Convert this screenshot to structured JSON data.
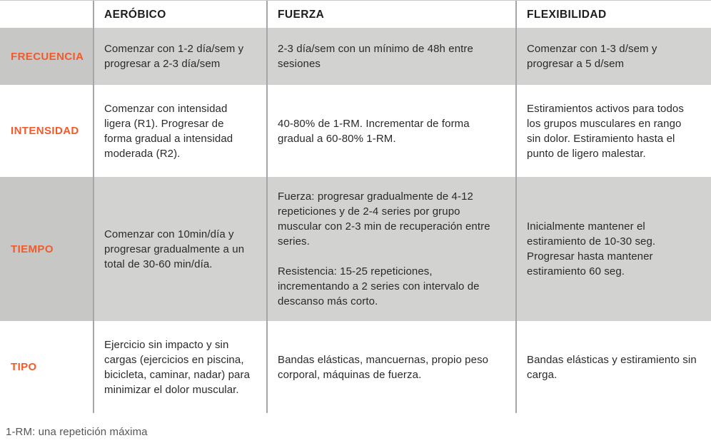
{
  "table": {
    "columns": [
      "AERÓBICO",
      "FUERZA",
      "FLEXIBILIDAD"
    ],
    "rows": [
      {
        "label": "FRECUENCIA",
        "shaded": true,
        "cells": [
          [
            "Comenzar con 1-2 día/sem y progresar a 2-3 día/sem"
          ],
          [
            "2-3 día/sem con un mínimo de 48h entre sesiones"
          ],
          [
            "Comenzar con 1-3 d/sem y progresar a 5 d/sem"
          ]
        ]
      },
      {
        "label": "INTENSIDAD",
        "shaded": false,
        "cells": [
          [
            "Comenzar con intensidad ligera (R1). Progresar de forma gradual a intensidad moderada (R2)."
          ],
          [
            "40-80% de 1-RM. Incrementar de forma gradual a 60-80% 1-RM."
          ],
          [
            "Estiramientos activos para todos los grupos musculares en rango sin dolor. Estiramiento hasta el punto de ligero malestar."
          ]
        ]
      },
      {
        "label": "TIEMPO",
        "shaded": true,
        "cells": [
          [
            "Comenzar con 10min/día y progresar gradualmente a un total de 30-60 min/día."
          ],
          [
            "Fuerza: progresar gradualmente de 4-12 repeticiones y de 2-4 series por grupo muscular con 2-3 min de recuperación entre series.",
            "Resistencia: 15-25 repeticiones, incrementando a 2 series con intervalo de descanso más corto."
          ],
          [
            "Inicialmente mantener el estiramiento de 10-30 seg. Progresar hasta mantener estiramiento 60 seg."
          ]
        ]
      },
      {
        "label": "TIPO",
        "shaded": false,
        "cells": [
          [
            "Ejercicio sin impacto y sin cargas (ejercicios en piscina, bicicleta, caminar, nadar) para minimizar el dolor muscular."
          ],
          [
            "Bandas elásticas, mancuernas, propio peso corporal, máquinas de fuerza."
          ],
          [
            "Bandas elásticas y estiramiento sin carga."
          ]
        ]
      }
    ],
    "footnote": "1-RM: una repetición máxima"
  },
  "colors": {
    "accent_orange": "#f15b2b",
    "row_shade": "#d2d2d1",
    "label_shade": "#c7c7c6",
    "divider": "#a6a6a6",
    "top_border": "#c9c9c9",
    "text": "#2a2a2a",
    "header_text": "#1d1d1b",
    "footnote_text": "#55565a"
  }
}
